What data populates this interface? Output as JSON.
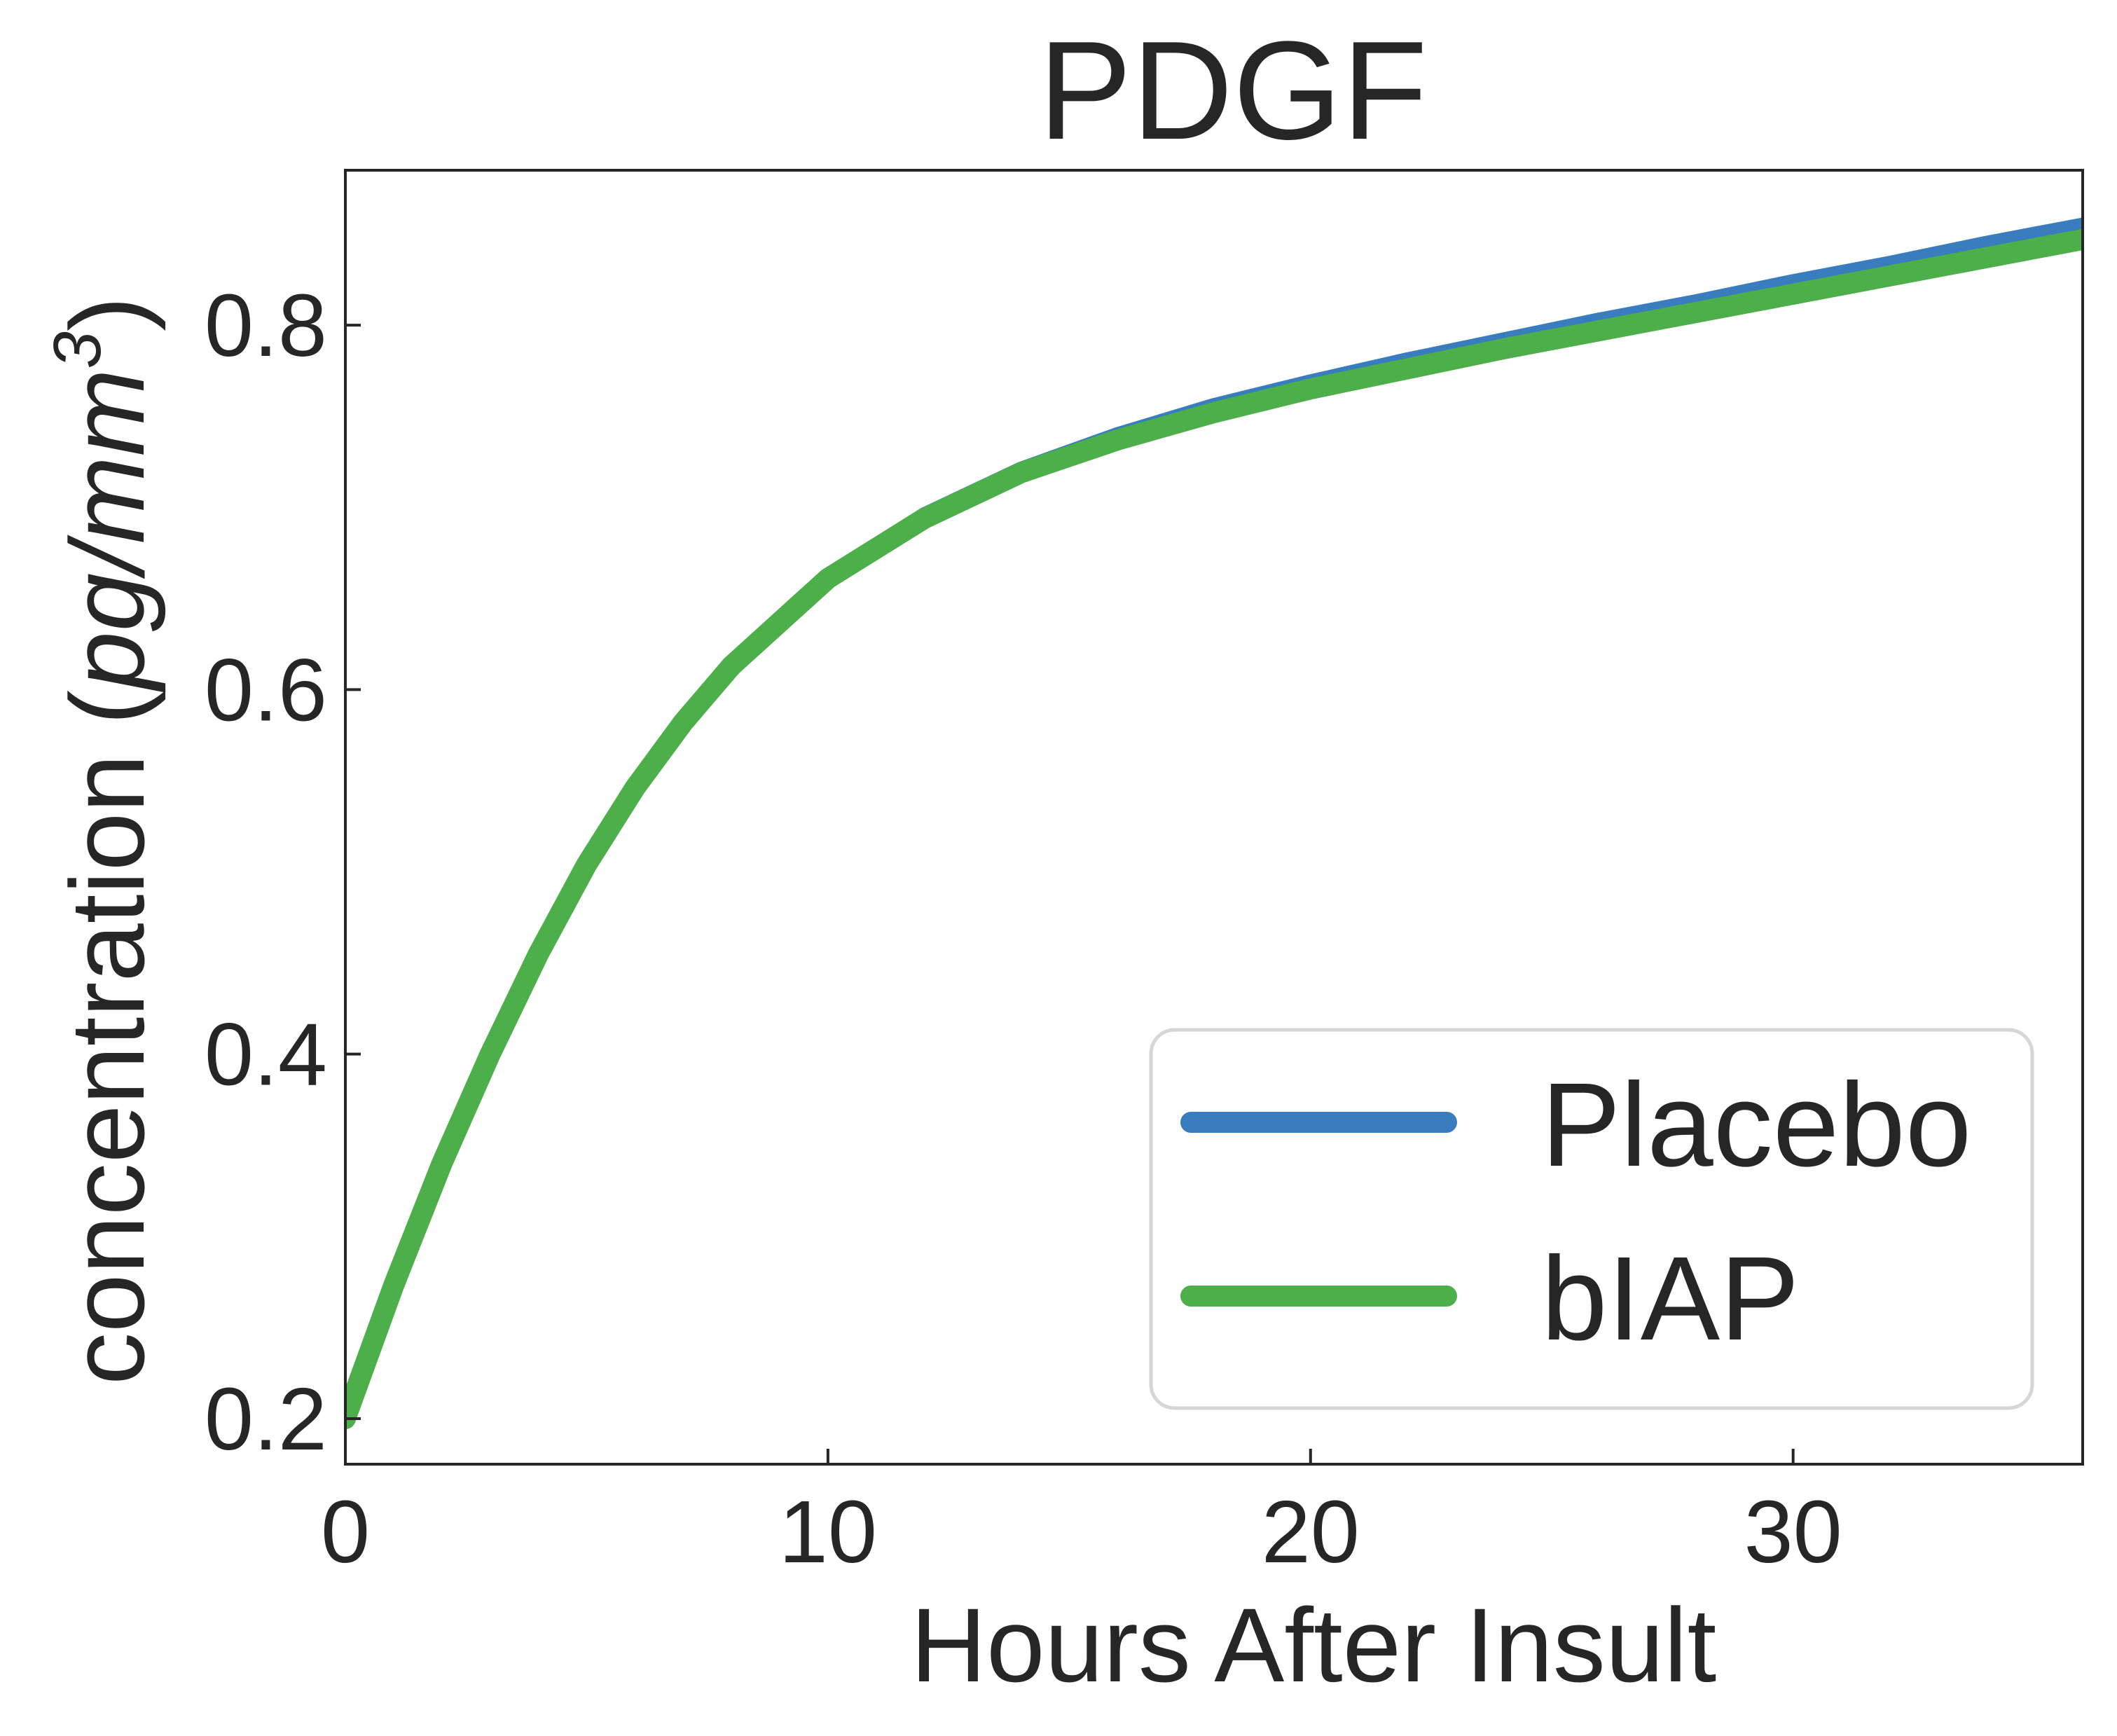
{
  "chart_data": {
    "type": "line",
    "title": "PDGF",
    "xlabel": "Hours After Insult",
    "ylabel_main": "concentration (",
    "ylabel_italic": "pg/mm",
    "ylabel_sup": "3",
    "ylabel_close": ")",
    "xlim": [
      0,
      36
    ],
    "ylim": [
      0.175,
      0.885
    ],
    "x_ticks": [
      0,
      10,
      20,
      30
    ],
    "x_tick_labels": [
      "0",
      "10",
      "20",
      "30"
    ],
    "y_ticks": [
      0.2,
      0.4,
      0.6,
      0.8
    ],
    "y_tick_labels": [
      "0.2",
      "0.4",
      "0.6",
      "0.8"
    ],
    "grid": false,
    "legend_position": "bottom-right",
    "series": [
      {
        "name": "Placebo",
        "color": "#3a7dbf",
        "x": [
          0,
          1,
          2,
          3,
          4,
          5,
          6,
          7,
          8,
          10,
          12,
          14,
          16,
          18,
          20,
          22,
          24,
          26,
          28,
          30,
          32,
          34,
          36
        ],
        "y": [
          0.2,
          0.273,
          0.34,
          0.4,
          0.455,
          0.504,
          0.546,
          0.582,
          0.613,
          0.661,
          0.695,
          0.72,
          0.739,
          0.755,
          0.768,
          0.78,
          0.791,
          0.802,
          0.812,
          0.823,
          0.833,
          0.844,
          0.854
        ]
      },
      {
        "name": "bIAP",
        "color": "#4daf4a",
        "x": [
          0,
          1,
          2,
          3,
          4,
          5,
          6,
          7,
          8,
          10,
          12,
          14,
          16,
          18,
          20,
          22,
          24,
          26,
          28,
          30,
          32,
          34,
          36
        ],
        "y": [
          0.2,
          0.273,
          0.34,
          0.4,
          0.455,
          0.504,
          0.546,
          0.582,
          0.613,
          0.661,
          0.694,
          0.719,
          0.737,
          0.752,
          0.765,
          0.776,
          0.787,
          0.797,
          0.807,
          0.817,
          0.827,
          0.837,
          0.847
        ]
      }
    ]
  }
}
